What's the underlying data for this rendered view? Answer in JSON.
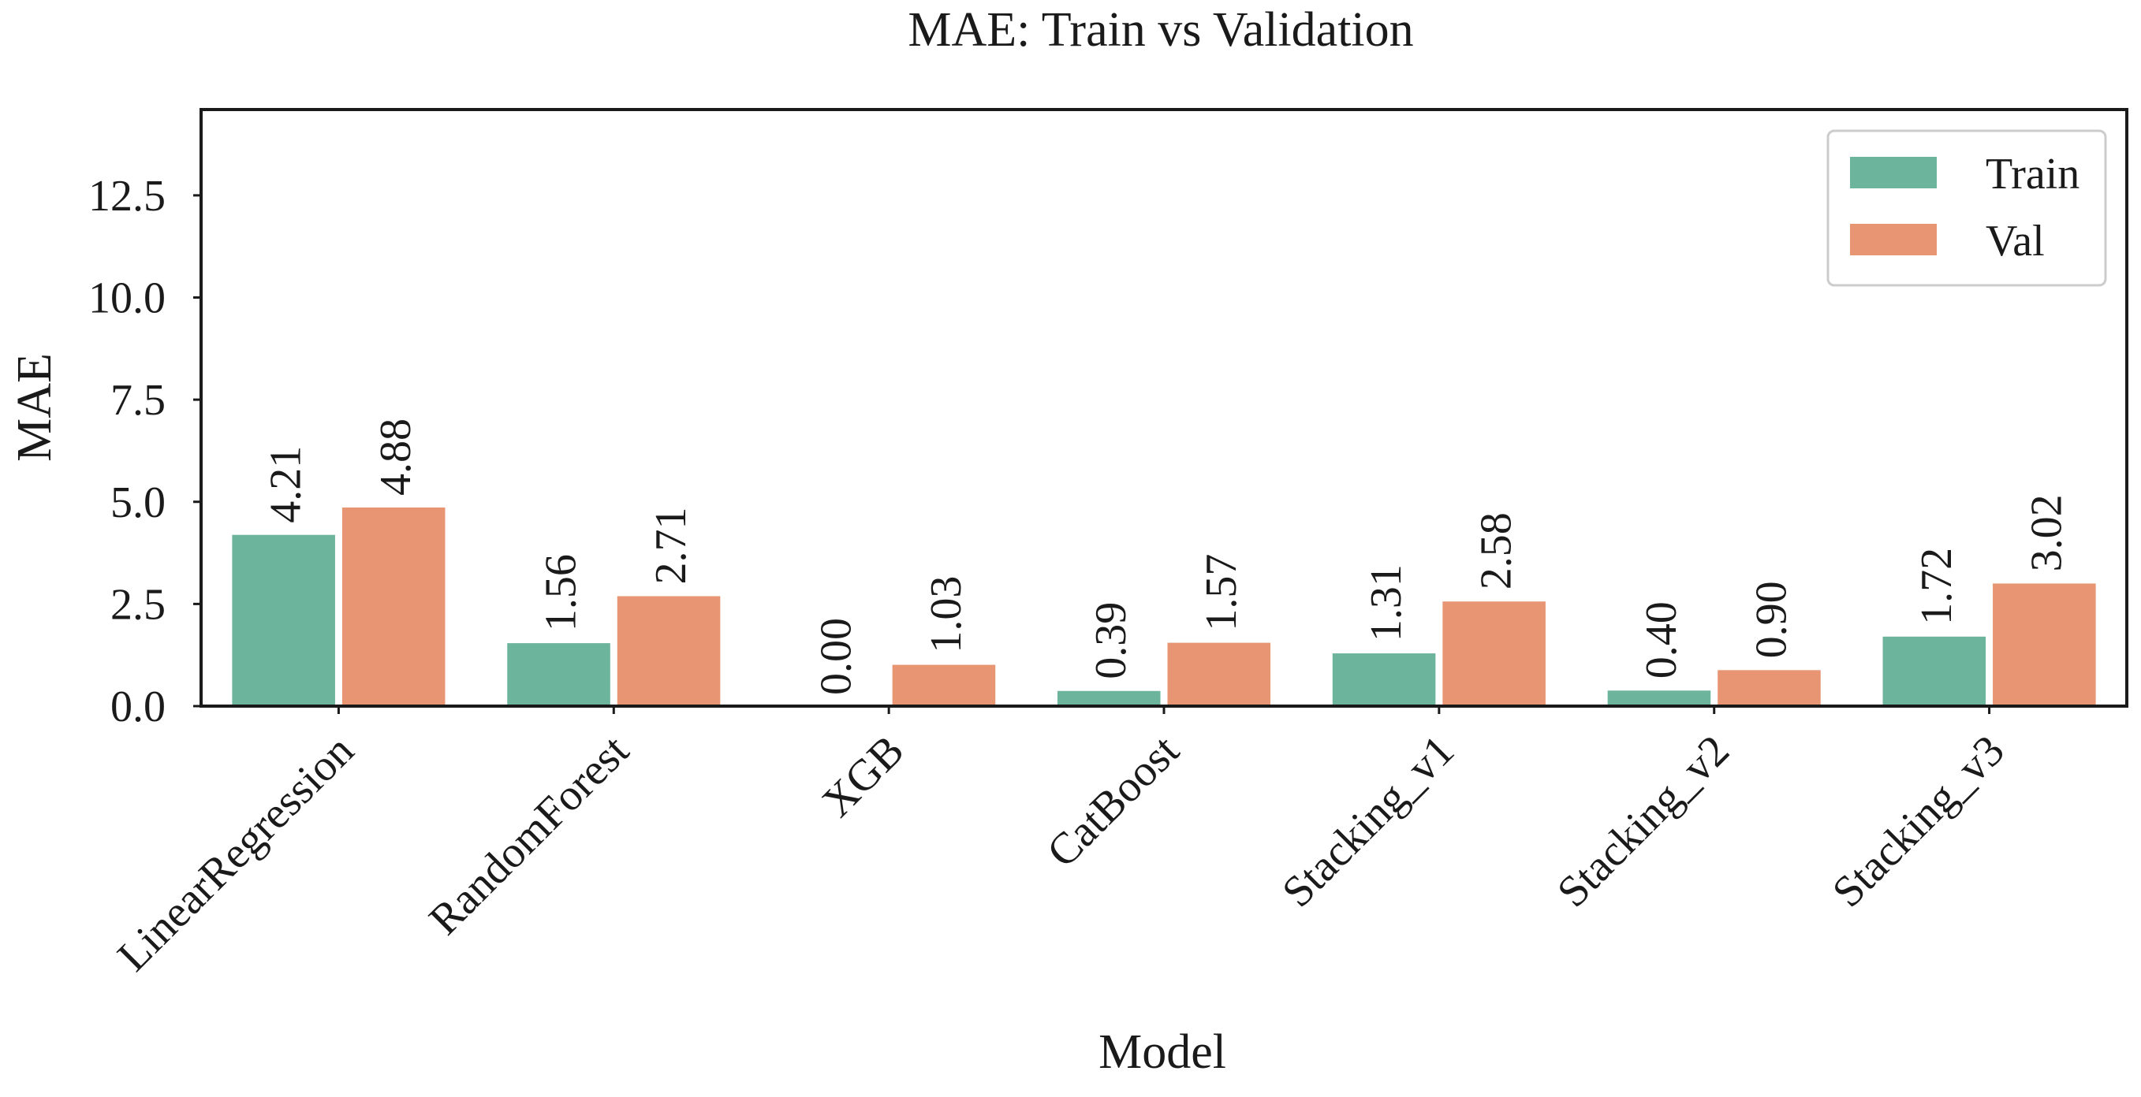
{
  "chart_data": {
    "type": "bar",
    "title": "MAE: Train vs Validation",
    "xlabel": "Model",
    "ylabel": "MAE",
    "ylim": [
      0,
      14.6
    ],
    "yticks": [
      "0.0",
      "2.5",
      "5.0",
      "7.5",
      "10.0",
      "12.5"
    ],
    "ytick_values": [
      0,
      2.5,
      5,
      7.5,
      10,
      12.5
    ],
    "grid": false,
    "legend_position": "top-right",
    "categories": [
      "LinearRegression",
      "RandomForest",
      "XGB",
      "CatBoost",
      "Stacking_v1",
      "Stacking_v2",
      "Stacking_v3"
    ],
    "series": [
      {
        "name": "Train",
        "color": "#6cb49b",
        "values": [
          4.21,
          1.56,
          0.0,
          0.39,
          1.31,
          0.4,
          1.72
        ],
        "labels": [
          "4.21",
          "1.56",
          "0.00",
          "0.39",
          "1.31",
          "0.40",
          "1.72"
        ]
      },
      {
        "name": "Val",
        "color": "#e89574",
        "values": [
          4.88,
          2.71,
          1.03,
          1.57,
          2.58,
          0.9,
          3.02
        ],
        "labels": [
          "4.88",
          "2.71",
          "1.03",
          "1.57",
          "2.58",
          "0.90",
          "3.02"
        ]
      }
    ]
  }
}
